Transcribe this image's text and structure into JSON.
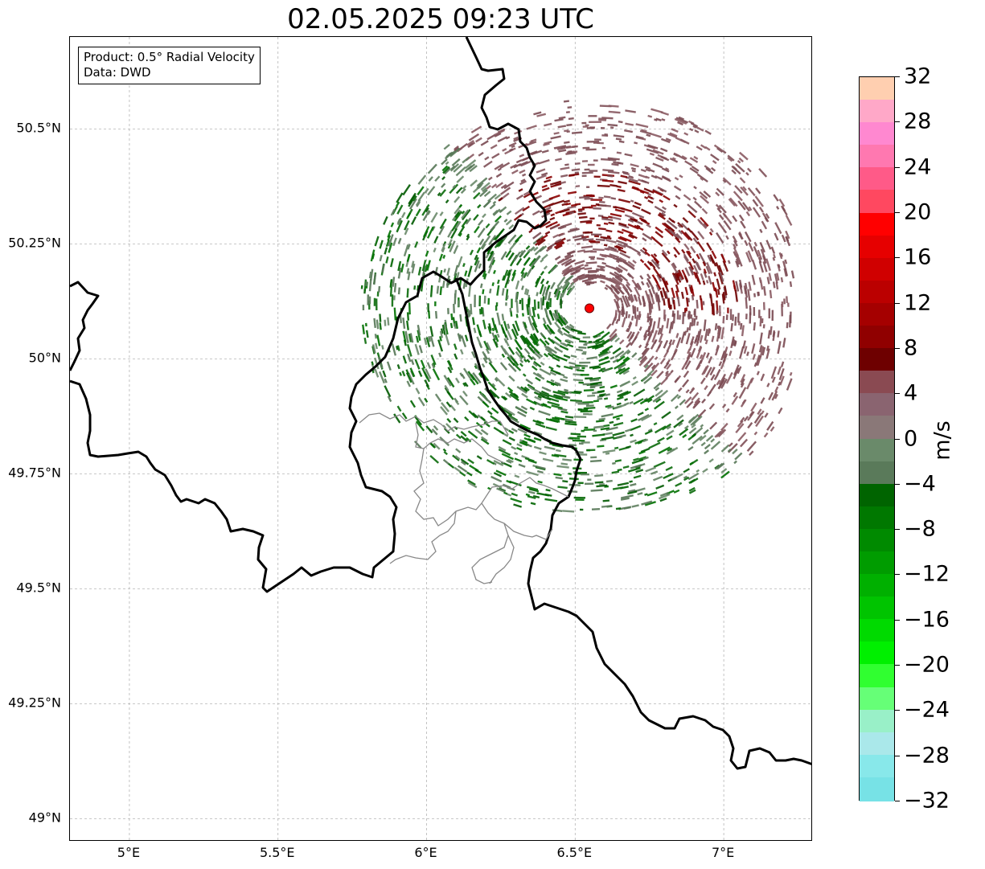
{
  "title": "02.05.2025 09:23 UTC",
  "info_box": {
    "product": "Product: 0.5° Radial Velocity",
    "data": "Data: DWD"
  },
  "map": {
    "lon_range": [
      4.8,
      7.3
    ],
    "lat_range": [
      48.95,
      50.7
    ],
    "lon_ticks": [
      "5°E",
      "5.5°E",
      "6°E",
      "6.5°E",
      "7°E"
    ],
    "lat_ticks": [
      "50.5°N",
      "50.25°N",
      "50°N",
      "49.75°N",
      "49.5°N",
      "49.25°N",
      "49°N"
    ],
    "grid": true,
    "radar_site": {
      "lon": 6.548,
      "lat": 50.11,
      "color": "#ff0000"
    }
  },
  "colorbar": {
    "label": "m/s",
    "min": -32,
    "max": 32,
    "tick_labels": [
      "32",
      "28",
      "24",
      "20",
      "16",
      "12",
      "8",
      "4",
      "0",
      "−4",
      "−8",
      "−12",
      "−16",
      "−20",
      "−24",
      "−28",
      "−32"
    ],
    "colors_top_to_bottom": [
      "#ffcfb0",
      "#ffa8c8",
      "#ff88d0",
      "#ff78b0",
      "#ff5a88",
      "#ff4860",
      "#ff0000",
      "#e60000",
      "#d00000",
      "#bb0000",
      "#a50000",
      "#900000",
      "#6e0000",
      "#8a4a52",
      "#8a6470",
      "#8a7878",
      "#6a8a6a",
      "#5a7a5a",
      "#006400",
      "#007800",
      "#008a00",
      "#009c00",
      "#00b000",
      "#00c400",
      "#00da00",
      "#00f000",
      "#30ff30",
      "#66ff77",
      "#99f0c8",
      "#aae8ea",
      "#88e8ea",
      "#77e2e6"
    ]
  }
}
